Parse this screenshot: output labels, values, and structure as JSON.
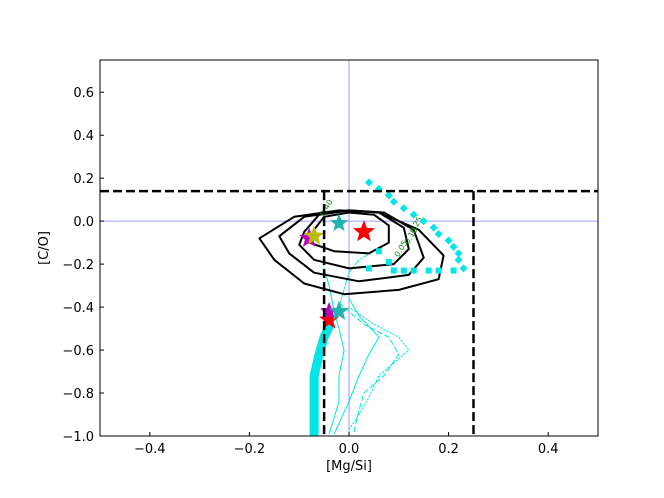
{
  "chart_data": {
    "type": "scatter",
    "xlabel": "[Mg/Si]",
    "ylabel": "[C/O]",
    "xlim": [
      -0.5,
      0.5
    ],
    "ylim": [
      -1.0,
      0.75
    ],
    "xticks": [
      {
        "v": -0.4,
        "label": "−0.4"
      },
      {
        "v": -0.2,
        "label": "−0.2"
      },
      {
        "v": 0.0,
        "label": "0.0"
      },
      {
        "v": 0.2,
        "label": "0.2"
      },
      {
        "v": 0.4,
        "label": "0.4"
      }
    ],
    "yticks": [
      {
        "v": -1.0,
        "label": "−1.0"
      },
      {
        "v": -0.8,
        "label": "−0.8"
      },
      {
        "v": -0.6,
        "label": "−0.6"
      },
      {
        "v": -0.4,
        "label": "−0.4"
      },
      {
        "v": -0.2,
        "label": "−0.2"
      },
      {
        "v": 0.0,
        "label": "0.0"
      },
      {
        "v": 0.2,
        "label": "0.2"
      },
      {
        "v": 0.4,
        "label": "0.4"
      },
      {
        "v": 0.6,
        "label": "0.6"
      }
    ],
    "colors": {
      "cyan": "#00e5e5",
      "black": "#000000",
      "blue_ref": "#7f7fff",
      "contour_label": "#1a8a1a",
      "star_red": "#ff0000",
      "star_magenta": "#bb00bb",
      "star_olive": "#bbbb00",
      "star_teal": "#22b2b2"
    },
    "reference_lines": {
      "blue_h": 0.0,
      "blue_v": 0.0,
      "dashed_h": 0.14,
      "dashed_v": [
        -0.05,
        0.25
      ]
    },
    "contours": [
      {
        "level": "0.40",
        "points": [
          [
            -0.07,
            -0.04
          ],
          [
            -0.05,
            0.02
          ],
          [
            0.0,
            0.04
          ],
          [
            0.05,
            0.03
          ],
          [
            0.08,
            -0.02
          ],
          [
            0.08,
            -0.1
          ],
          [
            0.04,
            -0.15
          ],
          [
            -0.03,
            -0.14
          ],
          [
            -0.08,
            -0.1
          ]
        ]
      },
      {
        "level": "0.25",
        "points": [
          [
            -0.09,
            -0.05
          ],
          [
            -0.06,
            0.03
          ],
          [
            0.0,
            0.05
          ],
          [
            0.06,
            0.04
          ],
          [
            0.11,
            -0.03
          ],
          [
            0.12,
            -0.13
          ],
          [
            0.09,
            -0.2
          ],
          [
            0.0,
            -0.22
          ],
          [
            -0.07,
            -0.18
          ],
          [
            -0.1,
            -0.11
          ]
        ]
      },
      {
        "level": "0.10",
        "points": [
          [
            -0.14,
            -0.07
          ],
          [
            -0.09,
            0.02
          ],
          [
            0.0,
            0.05
          ],
          [
            0.07,
            0.04
          ],
          [
            0.13,
            -0.04
          ],
          [
            0.15,
            -0.17
          ],
          [
            0.12,
            -0.25
          ],
          [
            0.02,
            -0.28
          ],
          [
            -0.07,
            -0.24
          ],
          [
            -0.12,
            -0.15
          ]
        ]
      },
      {
        "level": "0.05",
        "points": [
          [
            -0.18,
            -0.08
          ],
          [
            -0.11,
            0.02
          ],
          [
            -0.02,
            0.05
          ],
          [
            0.06,
            0.04
          ],
          [
            0.14,
            -0.04
          ],
          [
            0.19,
            -0.16
          ],
          [
            0.18,
            -0.27
          ],
          [
            0.1,
            -0.32
          ],
          [
            -0.01,
            -0.34
          ],
          [
            -0.09,
            -0.29
          ],
          [
            -0.15,
            -0.18
          ]
        ]
      }
    ],
    "contour_labels": [
      {
        "text": "0.40",
        "x": -0.05,
        "y": 0.02
      },
      {
        "text": "0.25",
        "x": 0.13,
        "y": -0.06
      },
      {
        "text": "0.10",
        "x": 0.12,
        "y": -0.11
      },
      {
        "text": "0.05",
        "x": 0.1,
        "y": -0.17
      }
    ],
    "series": [
      {
        "marker": "diamond",
        "color": "#00e5e5",
        "points": [
          [
            0.04,
            0.18
          ],
          [
            0.06,
            0.15
          ],
          [
            0.08,
            0.12
          ],
          [
            0.09,
            0.09
          ],
          [
            0.11,
            0.06
          ],
          [
            0.13,
            0.03
          ],
          [
            0.15,
            0.0
          ],
          [
            0.17,
            -0.03
          ],
          [
            0.18,
            -0.06
          ],
          [
            0.2,
            -0.09
          ],
          [
            0.21,
            -0.12
          ],
          [
            0.22,
            -0.15
          ],
          [
            0.22,
            -0.18
          ],
          [
            0.23,
            -0.22
          ]
        ]
      },
      {
        "marker": "square",
        "color": "#00e5e5",
        "points": [
          [
            0.06,
            -0.14
          ],
          [
            0.08,
            -0.19
          ],
          [
            0.09,
            -0.23
          ],
          [
            0.11,
            -0.23
          ],
          [
            0.13,
            -0.23
          ],
          [
            0.16,
            -0.23
          ],
          [
            0.18,
            -0.23
          ],
          [
            0.21,
            -0.23
          ],
          [
            0.04,
            -0.22
          ]
        ]
      }
    ],
    "tracks": [
      {
        "style": "thick",
        "width": 9,
        "points": [
          [
            -0.07,
            -0.99
          ],
          [
            -0.07,
            -0.92
          ],
          [
            -0.07,
            -0.82
          ],
          [
            -0.07,
            -0.72
          ],
          [
            -0.06,
            -0.62
          ],
          [
            -0.05,
            -0.54
          ],
          [
            -0.04,
            -0.49
          ]
        ]
      },
      {
        "style": "solid",
        "width": 1,
        "points": [
          [
            -0.04,
            -0.99
          ],
          [
            -0.02,
            -0.84
          ],
          [
            -0.02,
            -0.72
          ],
          [
            -0.01,
            -0.6
          ],
          [
            -0.02,
            -0.5
          ],
          [
            -0.03,
            -0.42
          ],
          [
            -0.04,
            -0.3
          ],
          [
            -0.05,
            -0.22
          ]
        ]
      },
      {
        "style": "solid",
        "width": 1,
        "points": [
          [
            -0.03,
            -0.99
          ],
          [
            0.0,
            -0.84
          ],
          [
            0.02,
            -0.72
          ],
          [
            0.04,
            -0.62
          ],
          [
            0.06,
            -0.54
          ],
          [
            0.02,
            -0.44
          ],
          [
            0.0,
            -0.36
          ]
        ]
      },
      {
        "style": "dashed",
        "width": 1,
        "points": [
          [
            0.01,
            -0.98
          ],
          [
            0.02,
            -0.88
          ],
          [
            0.03,
            -0.8
          ],
          [
            0.07,
            -0.72
          ],
          [
            0.1,
            -0.62
          ],
          [
            0.08,
            -0.54
          ],
          [
            0.03,
            -0.48
          ],
          [
            -0.02,
            -0.38
          ]
        ]
      },
      {
        "style": "dotted",
        "width": 1,
        "points": [
          [
            0.0,
            -0.97
          ],
          [
            0.02,
            -0.9
          ],
          [
            0.04,
            -0.82
          ],
          [
            0.06,
            -0.72
          ],
          [
            0.09,
            -0.66
          ],
          [
            0.12,
            -0.6
          ],
          [
            0.1,
            -0.54
          ],
          [
            0.05,
            -0.48
          ],
          [
            0.0,
            -0.4
          ]
        ]
      },
      {
        "style": "dashdot",
        "width": 1,
        "points": [
          [
            -0.02,
            -0.4
          ],
          [
            -0.01,
            -0.32
          ],
          [
            0.0,
            -0.24
          ],
          [
            0.02,
            -0.18
          ],
          [
            0.05,
            -0.14
          ]
        ]
      }
    ],
    "stars": [
      {
        "x": 0.03,
        "y": -0.05,
        "color": "#ff0000",
        "size": 11
      },
      {
        "x": -0.08,
        "y": -0.08,
        "color": "#bb00bb",
        "size": 10
      },
      {
        "x": -0.07,
        "y": -0.07,
        "color": "#bbbb00",
        "size": 10
      },
      {
        "x": -0.02,
        "y": -0.01,
        "color": "#22b2b2",
        "size": 9
      },
      {
        "x": -0.04,
        "y": -0.46,
        "color": "#ff0000",
        "size": 10
      },
      {
        "x": -0.04,
        "y": -0.42,
        "color": "#bb00bb",
        "size": 9
      },
      {
        "x": -0.02,
        "y": -0.42,
        "color": "#22b2b2",
        "size": 10
      }
    ]
  }
}
